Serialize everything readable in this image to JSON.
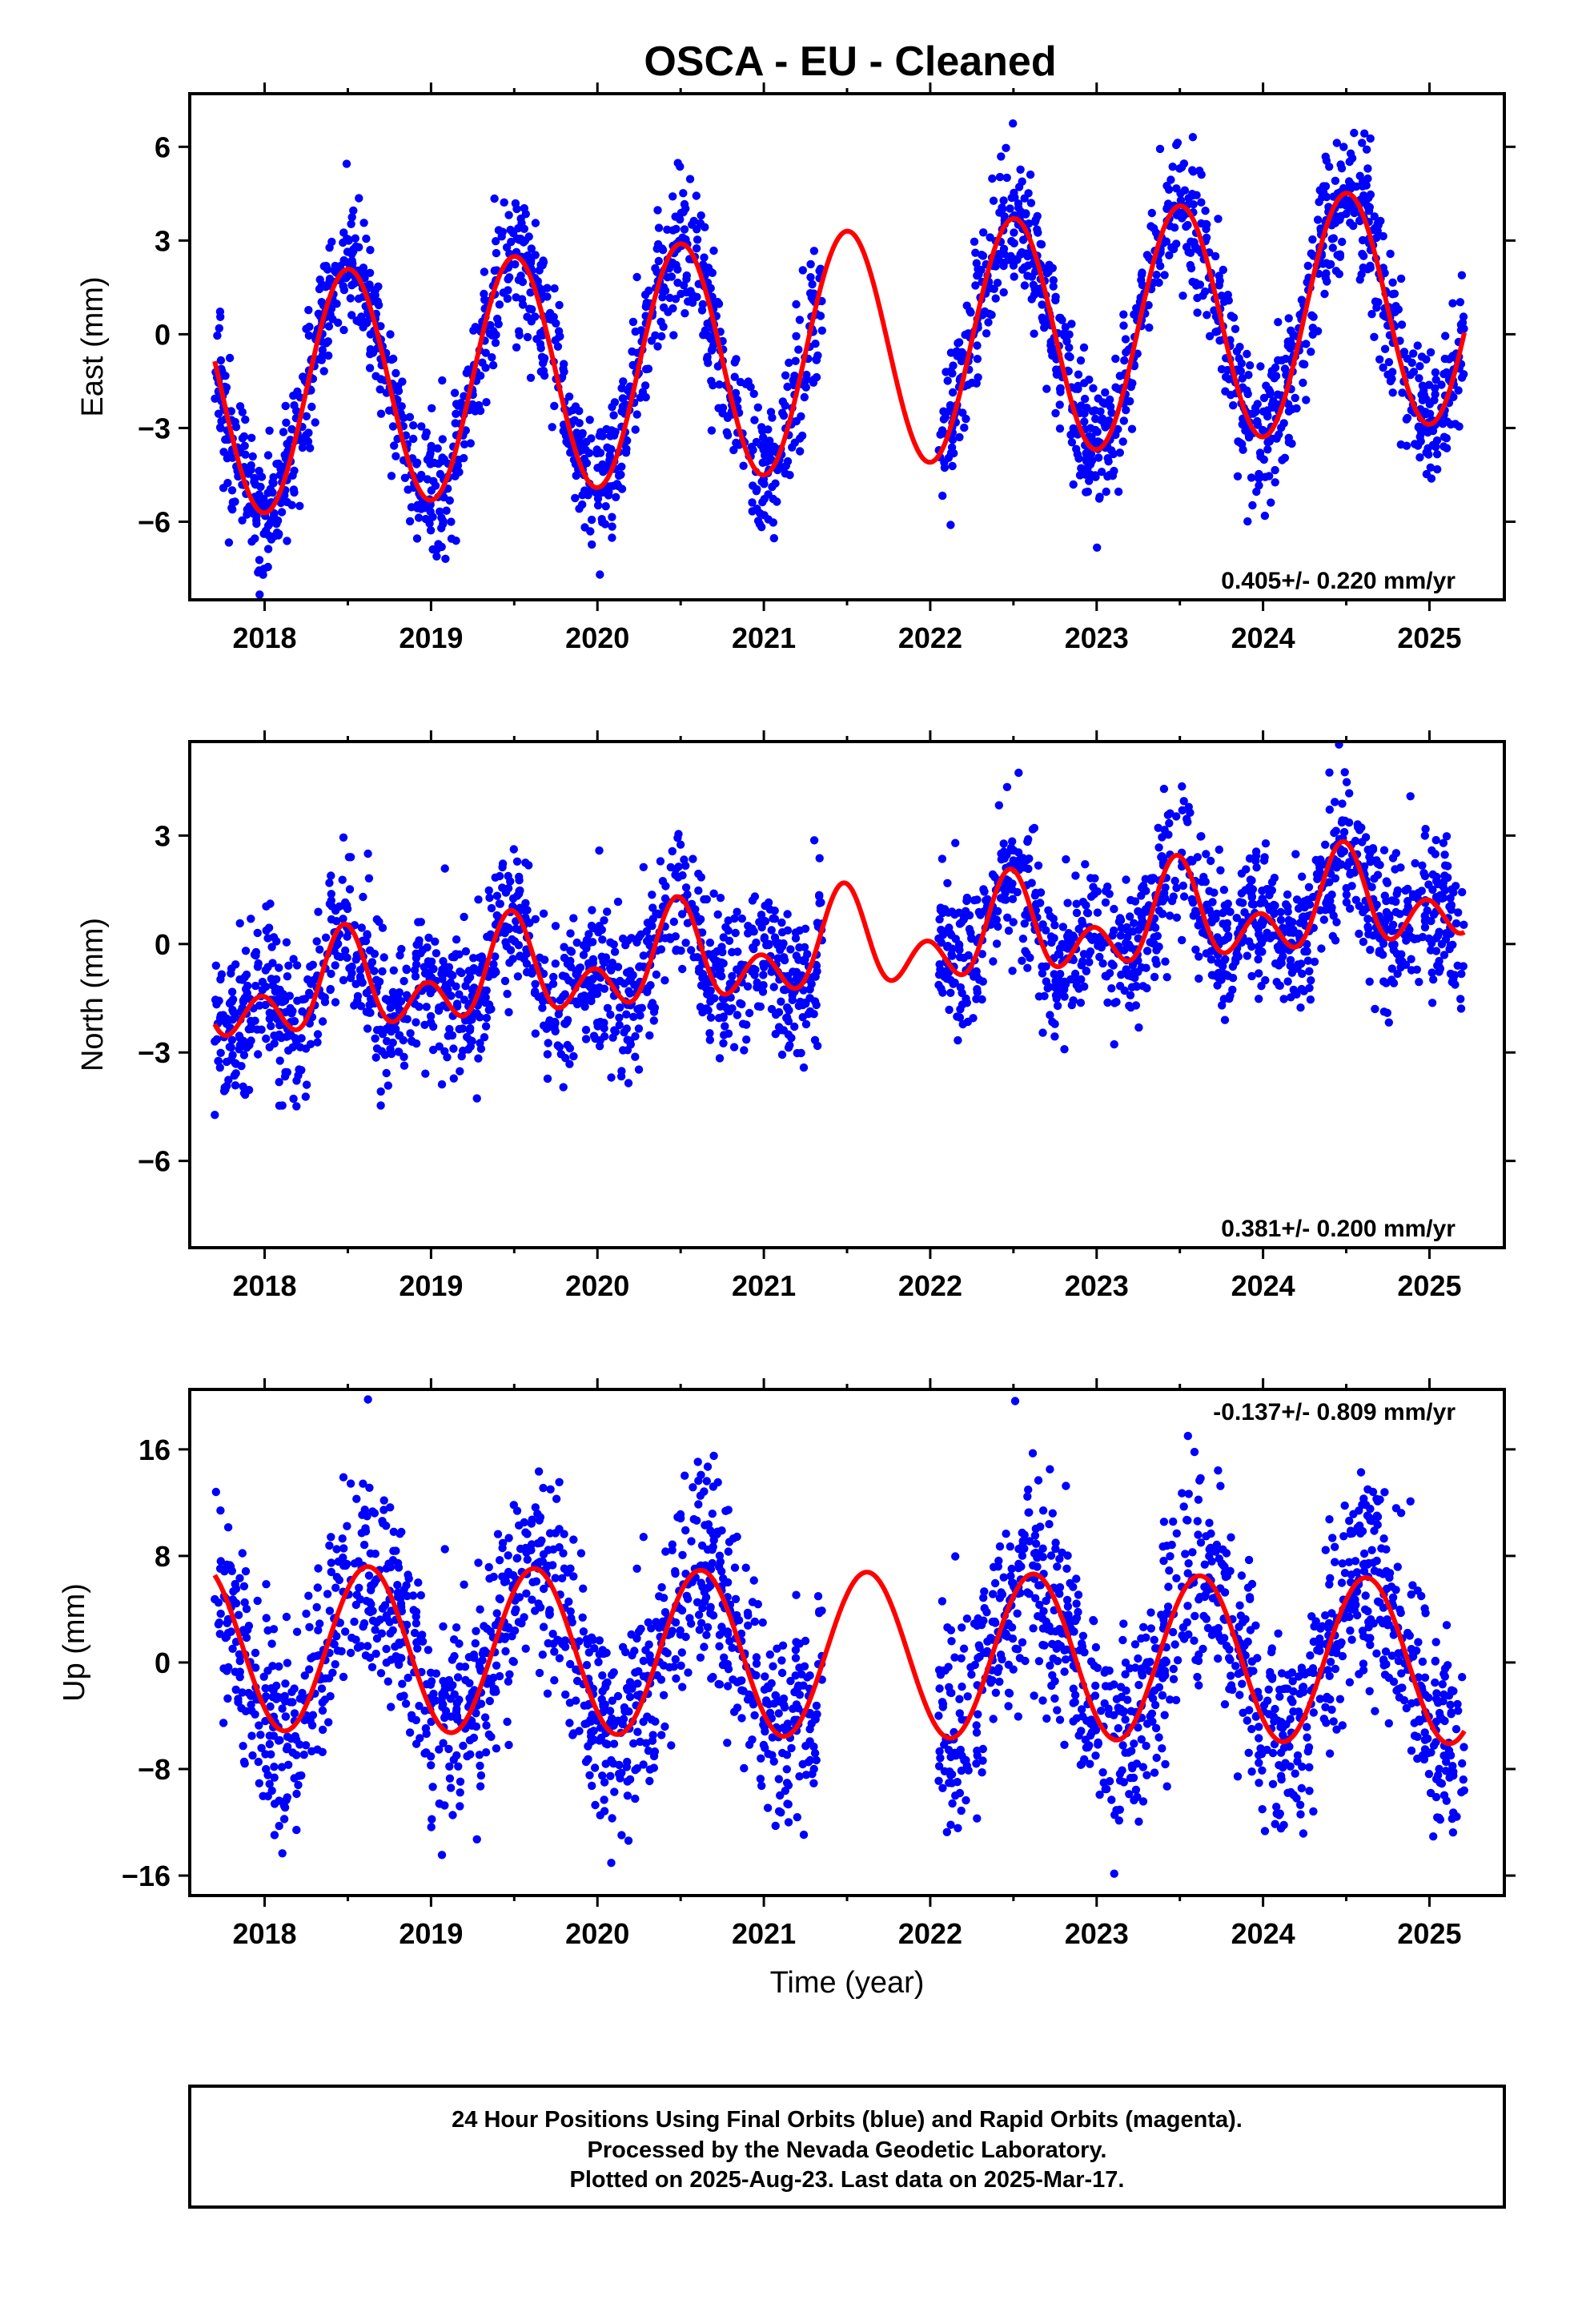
{
  "title": "OSCA  - EU - Cleaned",
  "colors": {
    "final_orbits": "#0000ff",
    "model_fit": "#ff0000",
    "frame": "#000000"
  },
  "chart_data": [
    {
      "type": "scatter",
      "component": "east",
      "ylabel": "East (mm)",
      "xlabel": "",
      "xlim": [
        2017.55,
        2025.45
      ],
      "ylim": [
        -8.5,
        7.7
      ],
      "yticks": [
        -6,
        -3,
        0,
        3,
        6
      ],
      "xticks": [
        2018,
        2019,
        2020,
        2021,
        2022,
        2023,
        2024,
        2025
      ],
      "rate_text": "0.405+/- 0.220 mm/yr",
      "rate_position": "bottom-right",
      "data_range": [
        2017.7,
        2025.21
      ],
      "gap": [
        2021.35,
        2022.05
      ],
      "series": [
        {
          "name": "",
          "kind": "model",
          "mean": -0.5,
          "trend": 0.405,
          "annual_amp": 3.8,
          "annual_peak": 0.5,
          "semi_amp": 0.0,
          "semi_peak": 0.0
        },
        {
          "name": "",
          "kind": "points",
          "count": 2300,
          "noise_sd": 1.1
        }
      ]
    },
    {
      "type": "scatter",
      "component": "north",
      "ylabel": "North (mm)",
      "xlabel": "",
      "xlim": [
        2017.55,
        2025.45
      ],
      "ylim": [
        -8.4,
        5.6
      ],
      "yticks": [
        -6,
        -3,
        0,
        3
      ],
      "xticks": [
        2018,
        2019,
        2020,
        2021,
        2022,
        2023,
        2024,
        2025
      ],
      "rate_text": "0.381+/- 0.200 mm/yr",
      "rate_position": "bottom-right",
      "data_range": [
        2017.7,
        2025.21
      ],
      "gap": [
        2021.35,
        2022.05
      ],
      "series": [
        {
          "name": "",
          "kind": "model",
          "mean": -0.1,
          "trend": 0.381,
          "annual_amp": 0.9,
          "annual_peak": 0.48,
          "semi_amp": 0.9,
          "semi_peak": 0.48
        },
        {
          "name": "",
          "kind": "points",
          "count": 2300,
          "noise_sd": 1.0
        }
      ]
    },
    {
      "type": "scatter",
      "component": "up",
      "ylabel": "Up (mm)",
      "xlabel": "Time (year)",
      "xlim": [
        2017.55,
        2025.45
      ],
      "ylim": [
        -17.5,
        20.5
      ],
      "yticks": [
        -16,
        -8,
        0,
        8,
        16
      ],
      "xticks": [
        2018,
        2019,
        2020,
        2021,
        2022,
        2023,
        2024,
        2025
      ],
      "rate_text": "-0.137+/- 0.809 mm/yr",
      "rate_position": "top-right",
      "data_range": [
        2017.7,
        2025.21
      ],
      "gap": [
        2021.35,
        2022.05
      ],
      "series": [
        {
          "name": "",
          "kind": "model",
          "mean": 0.6,
          "trend": -0.137,
          "annual_amp": 6.2,
          "annual_peak": 0.62,
          "semi_amp": 0.0,
          "semi_peak": 0.0
        },
        {
          "name": "",
          "kind": "points",
          "count": 2300,
          "noise_sd": 3.8
        }
      ]
    }
  ],
  "footer": {
    "lines": [
      "24 Hour Positions Using Final Orbits (blue) and Rapid Orbits (magenta).",
      "Processed by the Nevada Geodetic Laboratory.",
      "Plotted on 2025-Aug-23. Last data on 2025-Mar-17."
    ]
  }
}
